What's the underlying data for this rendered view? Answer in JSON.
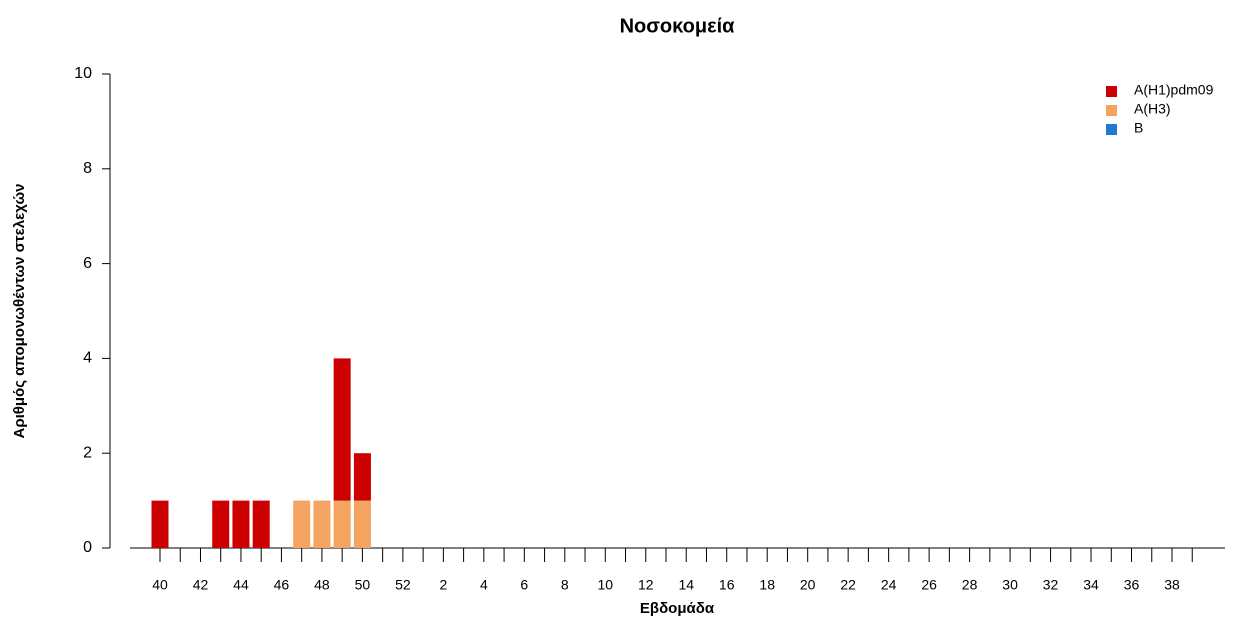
{
  "chart_data": {
    "type": "stacked_bar",
    "title": "Νοσοκομεία",
    "x_label": "Εβδομάδα",
    "y_label": "Αριθμός απομονωθέντων στελεχών",
    "categories": [
      40,
      null,
      42,
      null,
      44,
      null,
      46,
      null,
      48,
      null,
      50,
      null,
      52,
      null,
      2,
      null,
      4,
      null,
      6,
      null,
      8,
      null,
      10,
      null,
      12,
      null,
      14,
      null,
      16,
      null,
      18,
      null,
      20,
      null,
      22,
      null,
      24,
      null,
      26,
      null,
      28,
      null,
      30,
      null,
      32,
      null,
      34,
      null,
      36,
      null,
      38,
      null
    ],
    "series": [
      {
        "name": "A(H1)pdm09",
        "color": "#cc0000",
        "values": [
          1,
          0,
          0,
          1,
          1,
          1,
          0,
          0,
          0,
          3,
          1,
          0,
          0,
          0,
          0,
          0,
          0,
          0,
          0,
          0,
          0,
          0,
          0,
          0,
          0,
          0,
          0,
          0,
          0,
          0,
          0,
          0,
          0,
          0,
          0,
          0,
          0,
          0,
          0,
          0,
          0,
          0,
          0,
          0,
          0,
          0,
          0,
          0,
          0,
          0,
          0,
          0
        ]
      },
      {
        "name": "A(H3)",
        "color": "#f4a460",
        "values": [
          0,
          0,
          0,
          0,
          0,
          0,
          0,
          1,
          1,
          1,
          1,
          0,
          0,
          0,
          0,
          0,
          0,
          0,
          0,
          0,
          0,
          0,
          0,
          0,
          0,
          0,
          0,
          0,
          0,
          0,
          0,
          0,
          0,
          0,
          0,
          0,
          0,
          0,
          0,
          0,
          0,
          0,
          0,
          0,
          0,
          0,
          0,
          0,
          0,
          0,
          0,
          0
        ]
      },
      {
        "name": "B",
        "color": "#1f78d1",
        "values": [
          0,
          0,
          0,
          0,
          0,
          0,
          0,
          0,
          0,
          0,
          0,
          0,
          0,
          0,
          0,
          0,
          0,
          0,
          0,
          0,
          0,
          0,
          0,
          0,
          0,
          0,
          0,
          0,
          0,
          0,
          0,
          0,
          0,
          0,
          0,
          0,
          0,
          0,
          0,
          0,
          0,
          0,
          0,
          0,
          0,
          0,
          0,
          0,
          0,
          0,
          0,
          0
        ]
      }
    ],
    "ylim": [
      0,
      10
    ],
    "yticks": [
      0,
      2,
      4,
      6,
      8,
      10
    ],
    "grid": false,
    "legend": "top-right"
  }
}
